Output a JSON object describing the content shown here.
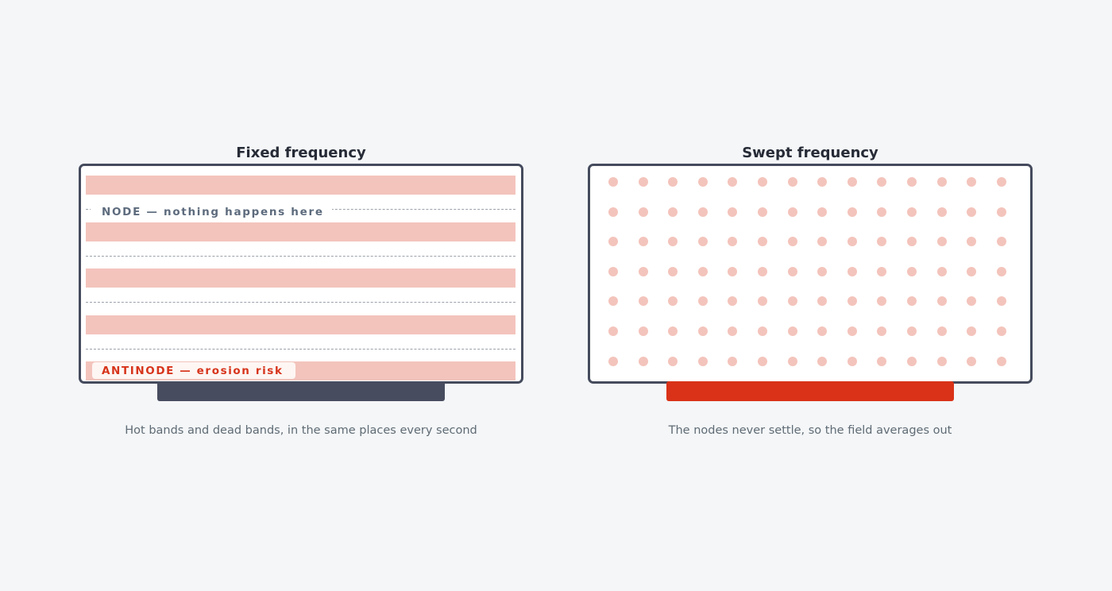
{
  "panels": [
    {
      "title": "Fixed frequency",
      "caption": "Hot bands and dead bands, in the same places every second",
      "node_label": "NODE — nothing happens here",
      "antinode_label": "ANTINODE — erosion risk",
      "band_count": 5,
      "node_line_count": 4,
      "base_color": "#474c5f"
    },
    {
      "title": "Swept frequency",
      "caption": "The nodes never settle, so the field averages out",
      "dot_columns": 14,
      "dot_rows": 7,
      "base_color": "#d93218"
    }
  ],
  "colors": {
    "background": "#f4f6f8",
    "tank_border": "#454b5d",
    "hot_band": "#f3c4bc",
    "node_text": "#5d6b7d",
    "antinode_text": "#d7341b"
  }
}
